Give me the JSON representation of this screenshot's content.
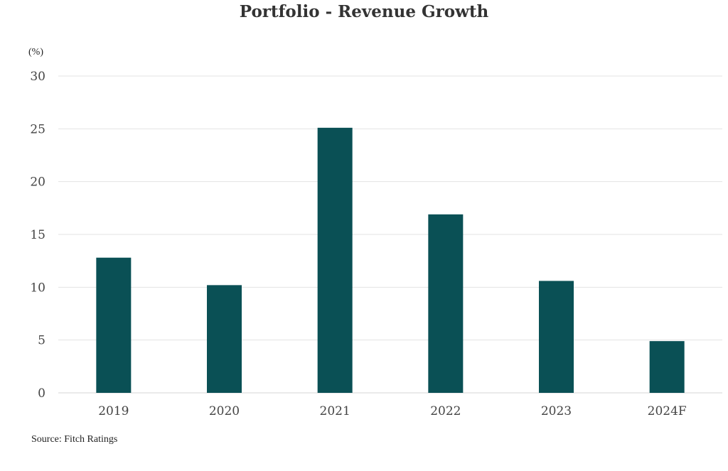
{
  "chart_data": {
    "type": "bar",
    "title": "Portfolio - Revenue Growth",
    "unit_label": "(%)",
    "categories": [
      "2019",
      "2020",
      "2021",
      "2022",
      "2023",
      "2024F"
    ],
    "values": [
      12.8,
      10.2,
      25.1,
      16.9,
      10.6,
      4.9
    ],
    "ylim": [
      0,
      30
    ],
    "yticks": [
      0,
      5,
      10,
      15,
      20,
      25,
      30
    ],
    "grid": true,
    "bar_color": "#0a5055",
    "grid_color": "#e3e3e3",
    "tick_label_color": "#444444"
  },
  "source": "Source: Fitch Ratings"
}
